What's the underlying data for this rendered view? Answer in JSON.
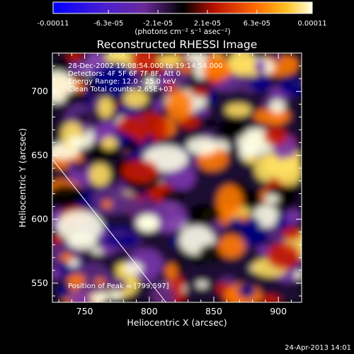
{
  "colorbar": {
    "tick_labels": [
      "-0.00011",
      "-6.3e-05",
      "-2.1e-05",
      "2.1e-05",
      "6.3e-05",
      "0.00011"
    ],
    "min": -0.00011,
    "max": 0.00011,
    "unit_label": "(photons cm⁻² s⁻¹ asec⁻²)"
  },
  "chart_data": {
    "type": "heatmap",
    "title": "Reconstructed RHESSI Image",
    "xlabel": "Heliocentric X (arcsec)",
    "ylabel": "Heliocentric Y (arcsec)",
    "xlim": [
      725,
      918
    ],
    "ylim": [
      535,
      730
    ],
    "x_ticks": [
      750,
      800,
      850,
      900
    ],
    "y_ticks": [
      550,
      600,
      650,
      700
    ],
    "annotations": [
      "28-Dec-2002 19:08:54.000 to 19:14:54.000",
      "Detectors: 4F 5F 6F 7F 8F, Att 0",
      "Energy Range: 12.0 - 25.0 keV",
      "Clean    Total counts: 2.65E+03"
    ],
    "peak_label": "Position of Peak = [799,597]",
    "peak_position": [
      799,
      597
    ],
    "limb_line": [
      [
        725,
        647
      ],
      [
        813,
        535
      ]
    ],
    "colormap": [
      "#000080",
      "#7a35a8",
      "#5a2a80",
      "#000000",
      "#c81800",
      "#ff7a00",
      "#ffe060",
      "#ffffe8"
    ]
  },
  "footer": {
    "timestamp": "24-Apr-2013 14:01"
  }
}
